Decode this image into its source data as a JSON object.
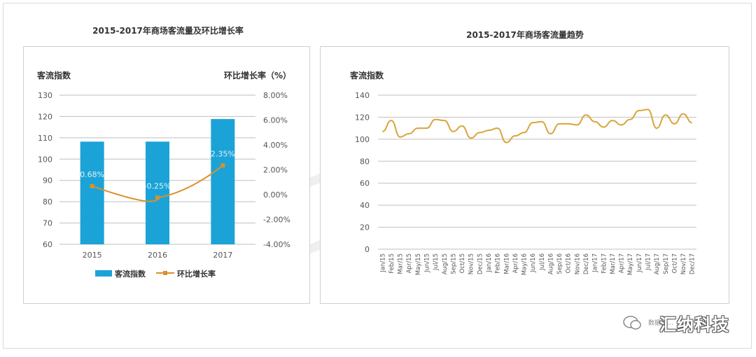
{
  "chart_data": [
    {
      "type": "bar",
      "title": "2015-2017年商场客流量及环比增长率",
      "categories": [
        "2015",
        "2016",
        "2017"
      ],
      "ylabel_left": "客流指数",
      "ylabel_right": "环比增长率（%）",
      "ylim_left": [
        60,
        130
      ],
      "yticks_left": [
        "130",
        "120",
        "110",
        "100",
        "90",
        "80",
        "70",
        "60"
      ],
      "ylim_right": [
        -4,
        8
      ],
      "yticks_right": [
        "8.00%",
        "6.00%",
        "4.00%",
        "2.00%",
        "0.00%",
        "-2.00%",
        "-4.00%"
      ],
      "series": [
        {
          "name": "客流指数",
          "kind": "bar",
          "axis": "left",
          "color": "#1ba3d8",
          "values": [
            108.2,
            108.2,
            118.8
          ]
        },
        {
          "name": "环比增长率",
          "kind": "line",
          "axis": "right",
          "color": "#d9912a",
          "values": [
            0.68,
            -0.25,
            2.35
          ],
          "data_labels": [
            "0.68%",
            "-0.25%",
            "2.35%"
          ]
        }
      ],
      "legend": "bottom",
      "grid": true
    },
    {
      "type": "line",
      "title": "2015-2017年商场客流量趋势",
      "ylabel": "客流指数",
      "ylim": [
        0,
        140
      ],
      "yticks": [
        "140",
        "120",
        "100",
        "80",
        "60",
        "40",
        "20",
        "0"
      ],
      "x": [
        "Jan/15",
        "Feb/15",
        "Mar/15",
        "Apr/15",
        "May/15",
        "Jun/15",
        "Jul/15",
        "Aug/15",
        "Sep/15",
        "Oct/15",
        "Nov/15",
        "Dec/15",
        "Jan/16",
        "Feb/16",
        "Mar/16",
        "Apr/16",
        "May/16",
        "Jun/16",
        "Jul/16",
        "Aug/16",
        "Sep/16",
        "Oct/16",
        "Nov/16",
        "Dec/16",
        "Jan/17",
        "Feb/17",
        "Mar/17",
        "Apr/17",
        "May/17",
        "Jun/17",
        "Jul/17",
        "Aug/17",
        "Sep/17",
        "Oct/17",
        "Nov/17",
        "Dec/17"
      ],
      "series": [
        {
          "color": "#d9a43a",
          "values": [
            107,
            117,
            102,
            105,
            110,
            110,
            118,
            117,
            107,
            112,
            101,
            106,
            108,
            110,
            97,
            103,
            106,
            115,
            116,
            105,
            114,
            114,
            113,
            122,
            116,
            111,
            117,
            113,
            118,
            126,
            127,
            110,
            122,
            114,
            123,
            115
          ]
        }
      ],
      "grid": true
    }
  ],
  "watermark": "汇纳科技",
  "logo": {
    "small_text": "数据采…",
    "big_text": "汇纳科技"
  }
}
